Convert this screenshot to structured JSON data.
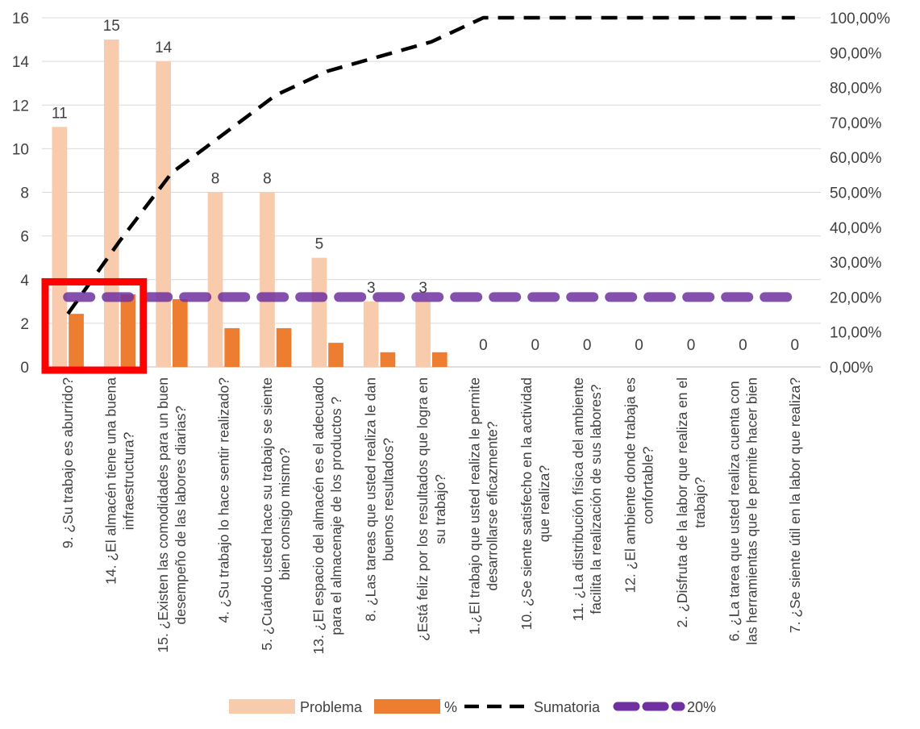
{
  "chart_data": {
    "type": "bar",
    "title": "",
    "categories": [
      "9. ¿Su trabajo es aburrido?",
      "14. ¿El almacén tiene una buena infraestructura?",
      "15. ¿Existen las comodidades para un buen desempeño de las labores diarias?",
      "4. ¿Su trabajo lo hace sentir realizado?",
      "5. ¿Cuándo usted hace su trabajo se siente bien consigo mismo?",
      "13. ¿El espacio del almacén es el adecuado para el almacenaje de los productos ?",
      "8. ¿Las tareas que usted realiza le dan buenos resultados?",
      "¿Está feliz por los resultados que logra en su trabajo?",
      "1.¿El trabajo que usted realiza le permite desarrollarse eficazmente?",
      "10. ¿Se siente satisfecho en la actividad que realiza?",
      "11. ¿La distribución física del ambiente facilita la realización de sus labores?",
      "12. ¿El ambiente donde trabaja es confortable?",
      "2. ¿Disfruta de la labor que realiza en el trabajo?",
      "6. ¿La tarea que usted realiza cuenta con las herramientas que le permite hacer bien su…",
      "7. ¿Se siente útil en la labor que realiza?"
    ],
    "series": [
      {
        "name": "Problema",
        "axis": "left",
        "kind": "bar",
        "color": "#F8CBAD",
        "values": [
          11,
          15,
          14,
          8,
          8,
          5,
          3,
          3,
          0,
          0,
          0,
          0,
          0,
          0,
          0
        ],
        "data_labels": [
          "11",
          "15",
          "14",
          "8",
          "8",
          "5",
          "3",
          "3",
          "0",
          "0",
          "0",
          "0",
          "0",
          "0",
          "0"
        ]
      },
      {
        "name": "%",
        "axis": "right",
        "kind": "bar",
        "color": "#ED7D31",
        "values": [
          0.152,
          0.208,
          0.194,
          0.111,
          0.111,
          0.069,
          0.042,
          0.042,
          0,
          0,
          0,
          0,
          0,
          0,
          0
        ]
      },
      {
        "name": "Sumatoria",
        "axis": "right",
        "kind": "line",
        "style": "dashed",
        "color": "#000000",
        "values": [
          0.152,
          0.361,
          0.556,
          0.667,
          0.778,
          0.847,
          0.889,
          0.931,
          1.0,
          1.0,
          1.0,
          1.0,
          1.0,
          1.0,
          1.0
        ]
      },
      {
        "name": "20%",
        "axis": "right",
        "kind": "line",
        "style": "dashed",
        "color": "#7030A0",
        "values": [
          0.2,
          0.2,
          0.2,
          0.2,
          0.2,
          0.2,
          0.2,
          0.2,
          0.2,
          0.2,
          0.2,
          0.2,
          0.2,
          0.2,
          0.2
        ]
      }
    ],
    "y_left": {
      "min": 0,
      "max": 16,
      "step": 2,
      "ticks": [
        "0",
        "2",
        "4",
        "6",
        "8",
        "10",
        "12",
        "14",
        "16"
      ]
    },
    "y_right": {
      "min": 0,
      "max": 1,
      "step": 0.1,
      "ticks": [
        "0,00%",
        "10,00%",
        "20,00%",
        "30,00%",
        "40,00%",
        "50,00%",
        "60,00%",
        "70,00%",
        "80,00%",
        "90,00%",
        "100,00%"
      ]
    },
    "grid": true,
    "legend": {
      "position": "bottom",
      "entries": [
        "Problema",
        "%",
        "Sumatoria",
        "20%"
      ]
    },
    "highlight": {
      "color": "#FF0000",
      "from_category": 0,
      "to_category": 1
    }
  }
}
